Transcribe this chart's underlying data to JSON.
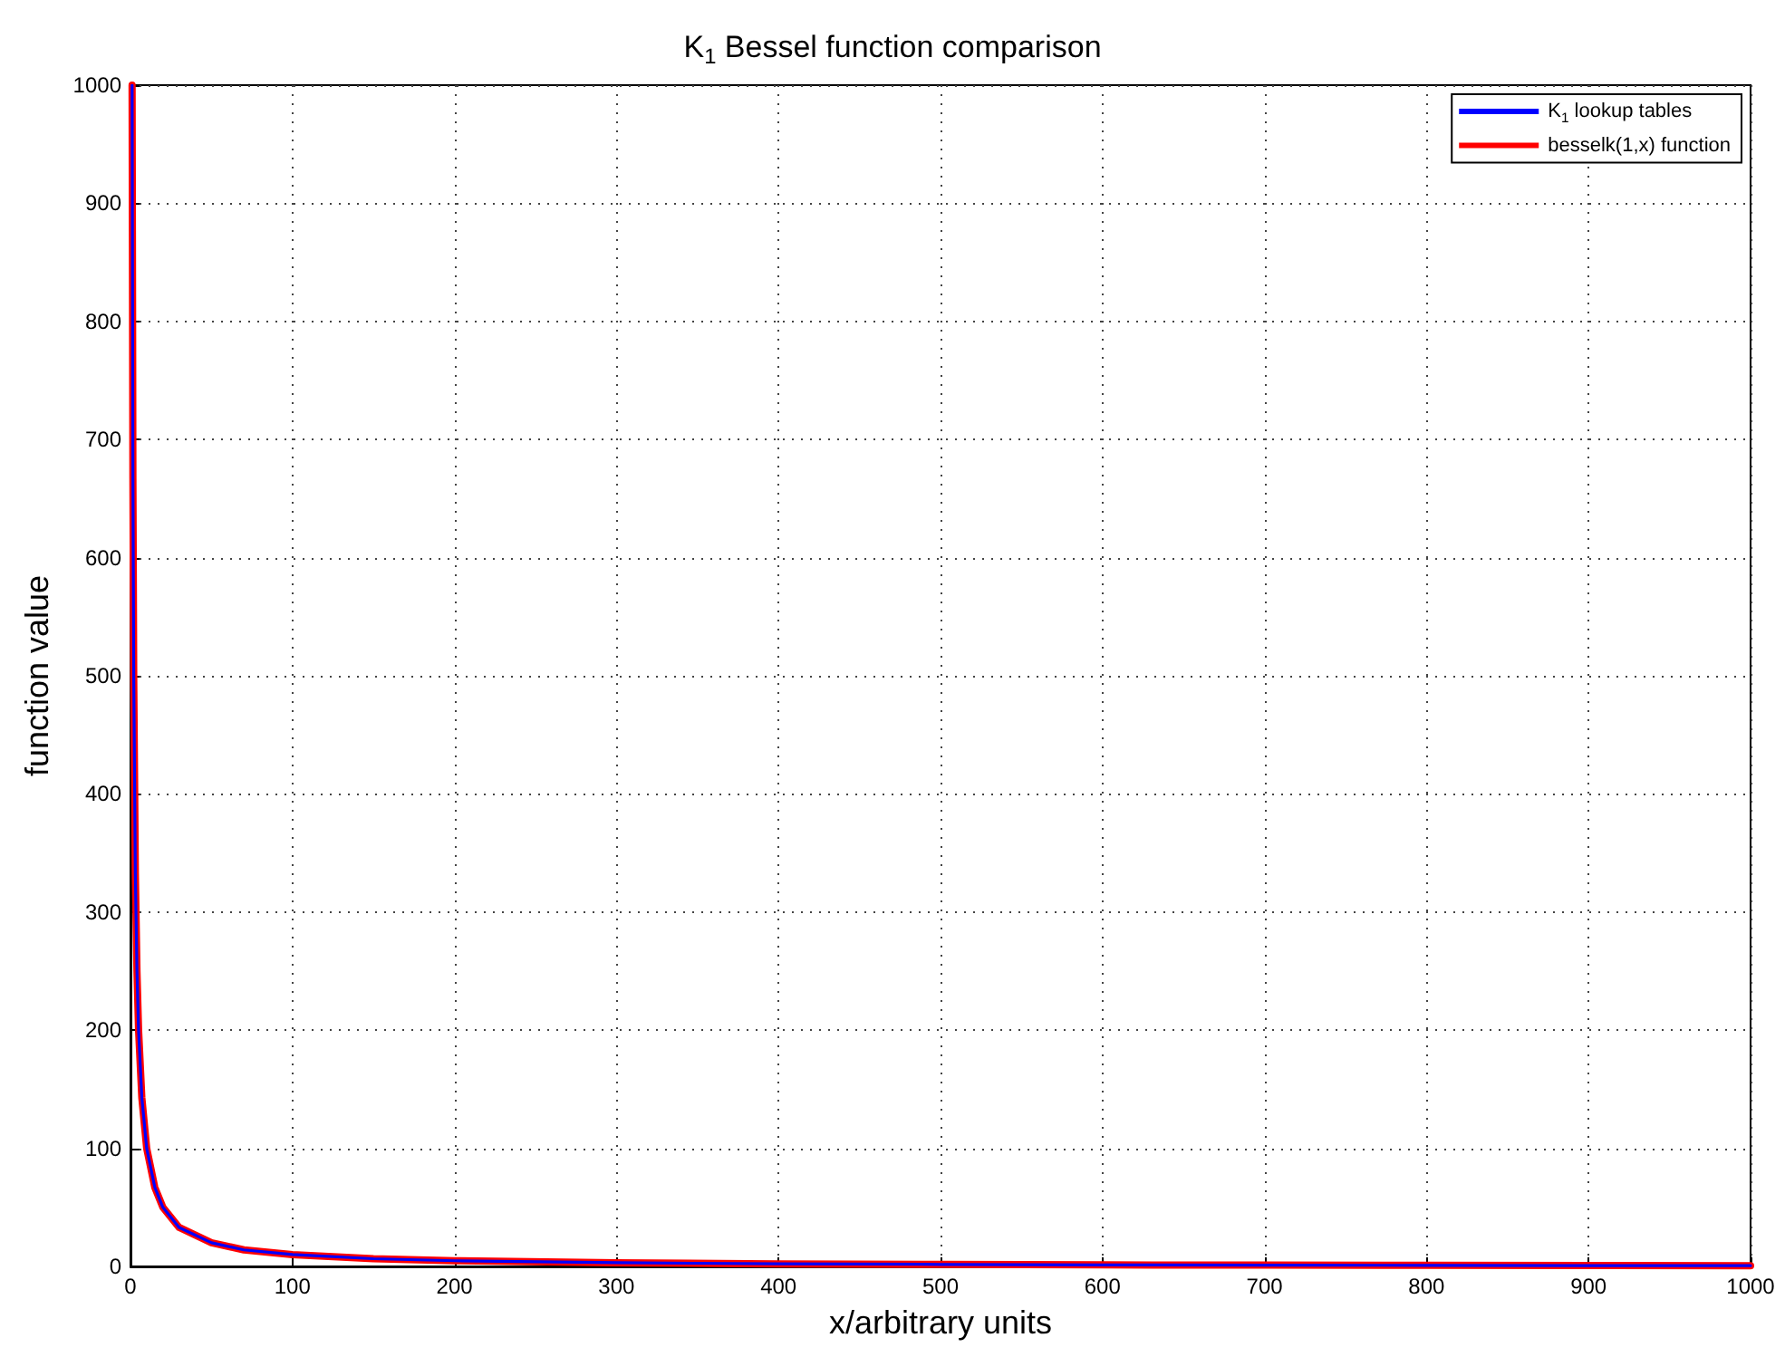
{
  "chart_data": {
    "type": "line",
    "title": "K$_{1}$ Bessel function comparison",
    "xlabel": "x/arbitrary units",
    "ylabel": "function value",
    "x": [
      1,
      1.5,
      2,
      3,
      4,
      5,
      7,
      10,
      15,
      20,
      30,
      50,
      70,
      100,
      150,
      200,
      300,
      400,
      500,
      600,
      700,
      800,
      900,
      1000
    ],
    "series": [
      {
        "name": "K$_{1}$ lookup tables",
        "color": "#0000ff",
        "values": [
          1000,
          667,
          500,
          333,
          250,
          200,
          143,
          100,
          67,
          50,
          33,
          20,
          14,
          10,
          6.5,
          4.8,
          3.1,
          2.2,
          1.7,
          1.3,
          1.1,
          0.9,
          0.7,
          0.6
        ]
      },
      {
        "name": "besselk(1,x) function",
        "color": "#ff0000",
        "values": [
          1000,
          667,
          500,
          333,
          250,
          200,
          143,
          100,
          67,
          50,
          33,
          20,
          14,
          10,
          6.5,
          4.8,
          3.1,
          2.2,
          1.7,
          1.3,
          1.1,
          0.9,
          0.7,
          0.6
        ]
      }
    ],
    "xlim": [
      0,
      1000
    ],
    "xticks": [
      0,
      100,
      200,
      300,
      400,
      500,
      600,
      700,
      800,
      900,
      1000
    ],
    "ylim": [
      0,
      1000
    ],
    "yticks": [
      0,
      100,
      200,
      300,
      400,
      500,
      600,
      700,
      800,
      900,
      1000
    ],
    "grid": true,
    "legend": "top right",
    "line_style": "solid",
    "marker": "none"
  }
}
